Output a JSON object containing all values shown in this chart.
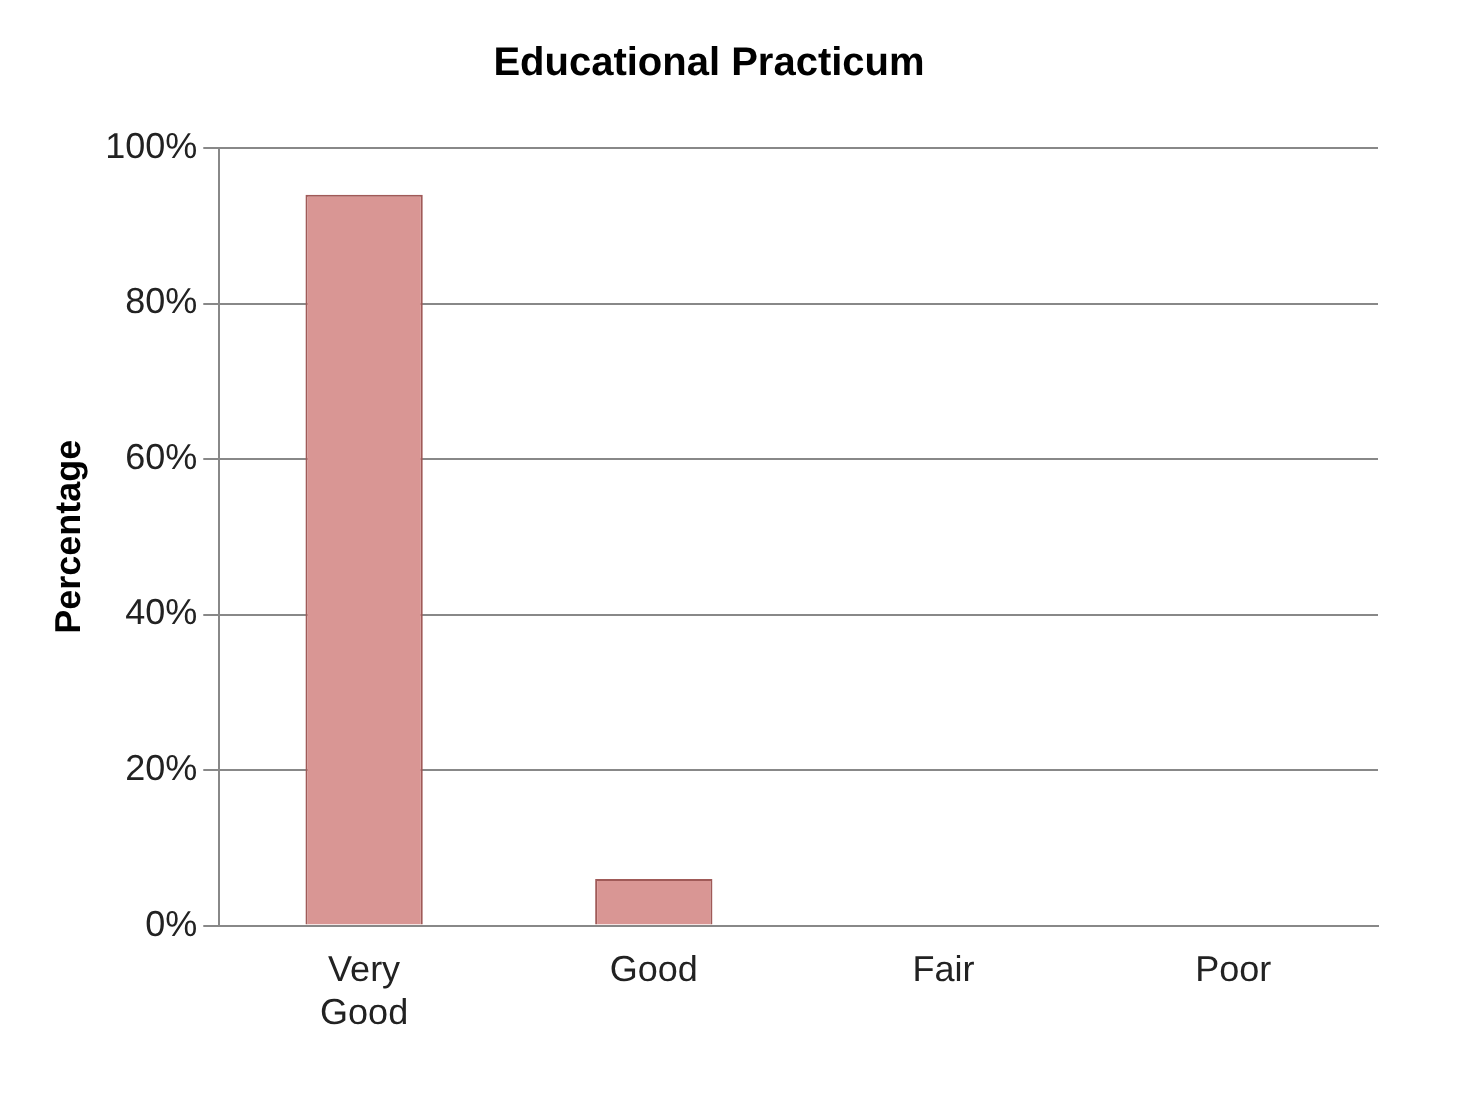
{
  "chart_data": {
    "type": "bar",
    "title": "Educational Practicum",
    "ylabel": "Percentage",
    "categories": [
      "Very Good",
      "Good",
      "Fair",
      "Poor"
    ],
    "values": [
      94,
      6,
      0,
      0
    ],
    "color": "#d99694",
    "ylim": [
      0,
      100
    ],
    "yticks": [
      {
        "value": 0,
        "label": "0%"
      },
      {
        "value": 20,
        "label": "20%"
      },
      {
        "value": 40,
        "label": "40%"
      },
      {
        "value": 60,
        "label": "60%"
      },
      {
        "value": 80,
        "label": "80%"
      },
      {
        "value": 100,
        "label": "100%"
      }
    ],
    "grid": "y",
    "legend": false
  }
}
